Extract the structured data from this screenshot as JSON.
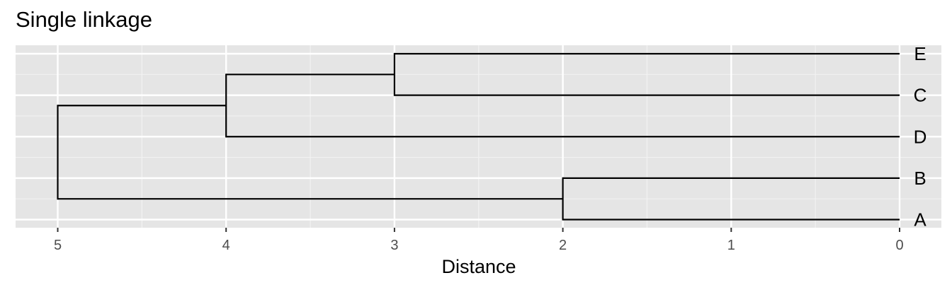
{
  "chart_data": {
    "type": "dendrogram",
    "title": "Single linkage",
    "xlabel": "Distance",
    "ylabel": "",
    "xlim": [
      5.25,
      0
    ],
    "x_reversed": true,
    "x_ticks": [
      5,
      4,
      3,
      2,
      1,
      0
    ],
    "x_tick_labels": [
      "5",
      "4",
      "3",
      "2",
      "1",
      "0"
    ],
    "grid": true,
    "leaves": [
      "E",
      "C",
      "D",
      "B",
      "A"
    ],
    "merges": [
      {
        "left": "B",
        "right": "A",
        "height": 2
      },
      {
        "left": "E",
        "right": "C",
        "height": 3
      },
      {
        "left": "E+C",
        "right": "D",
        "height": 4
      },
      {
        "left": "E+C+D",
        "right": "B+A",
        "height": 5
      }
    ]
  },
  "colors": {
    "panel_background": "#e5e5e5",
    "grid_major": "#ffffff",
    "grid_minor": "#f2f2f2",
    "branch": "#000000",
    "tick_label": "#4d4d4d",
    "leaf_label": "#000000"
  }
}
